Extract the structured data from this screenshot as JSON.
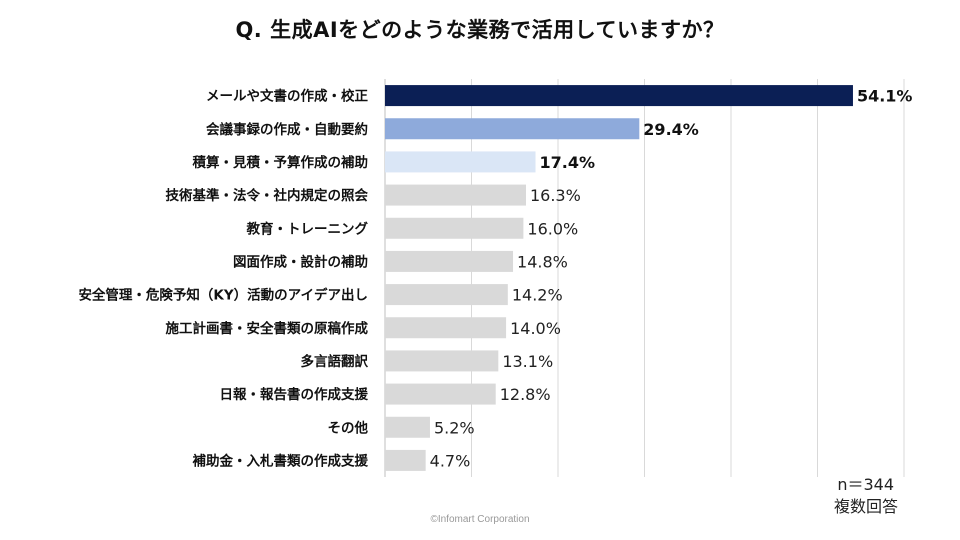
{
  "title": "Q. 生成AIをどのような業務で活用していますか？",
  "sample_size": "n＝344",
  "answer_type": "複数回答",
  "copyright": "©Infomart Corporation",
  "chart_data": {
    "type": "bar",
    "orientation": "horizontal",
    "categories": [
      "メールや文書の作成・校正",
      "会議事録の作成・自動要約",
      "積算・見積・予算作成の補助",
      "技術基準・法令・社内規定の照会",
      "教育・トレーニング",
      "図面作成・設計の補助",
      "安全管理・危険予知（KY）活動のアイデア出し",
      "施工計画書・安全書類の原稿作成",
      "多言語翻訳",
      "日報・報告書の作成支援",
      "その他",
      "補助金・入札書類の作成支援"
    ],
    "values": [
      54.1,
      29.4,
      17.4,
      16.3,
      16.0,
      14.8,
      14.2,
      14.0,
      13.1,
      12.8,
      5.2,
      4.7
    ],
    "value_labels": [
      "54.1%",
      "29.4%",
      "17.4%",
      "16.3%",
      "16.0%",
      "14.8%",
      "14.2%",
      "14.0%",
      "13.1%",
      "12.8%",
      "5.2%",
      "4.7%"
    ],
    "bar_colors": [
      "#0b1f55",
      "#8eaadb",
      "#dae6f6",
      "#d9d9d9",
      "#d9d9d9",
      "#d9d9d9",
      "#d9d9d9",
      "#d9d9d9",
      "#d9d9d9",
      "#d9d9d9",
      "#d9d9d9",
      "#d9d9d9"
    ],
    "bold_value_labels": [
      true,
      true,
      true,
      false,
      false,
      false,
      false,
      false,
      false,
      false,
      false,
      false
    ],
    "xlim": [
      0,
      60
    ],
    "grid": true,
    "grid_color": "#d9d9d9",
    "legend": "none"
  }
}
